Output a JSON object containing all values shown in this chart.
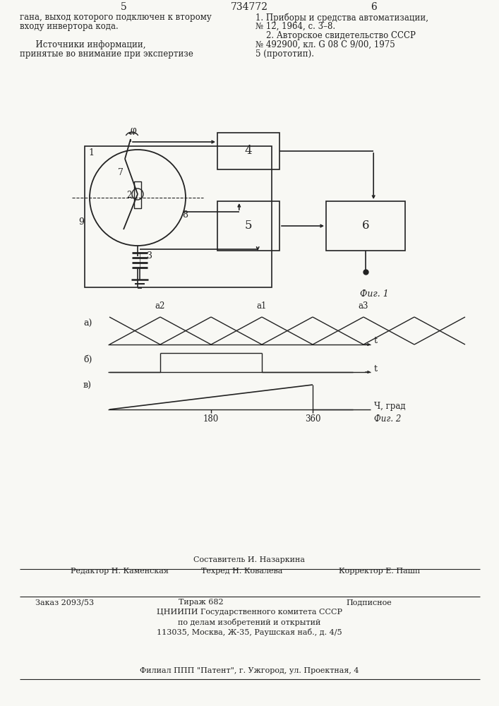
{
  "page_title": "734772",
  "page_left": "5",
  "page_right": "6",
  "text_left_col": [
    "гана, выход которого подключен к второму",
    "входу инвертора кода.",
    "",
    "      Источники информации,",
    "принятые во внимание при экспертизе"
  ],
  "text_right_col": [
    "1. Приборы и средства автоматизации,",
    "№ 12, 1964, с. 3–8.",
    "    2. Авторское свидетельство СССР",
    "№ 492900, кл. G 08 С 9/00, 1975",
    "5 (прототип)."
  ],
  "fig1_label": "Фиг. 1",
  "fig2_label": "Фиг. 2",
  "diagram_a_label": "а)",
  "diagram_b_label": "б)",
  "diagram_v_label": "в)",
  "axis_t_label": "t",
  "axis_x_label": "Ч, град",
  "tick_180": "180",
  "tick_360": "360",
  "a2_label": "a2",
  "a1_label": "a1",
  "a3_label": "a3",
  "footer_composer": "Составитель И. Назаркина",
  "footer_editor": "Редактор Н. Каменская",
  "footer_techred": "Техред Н. Ковалева",
  "footer_corrector": "Корректор Е. Пашп",
  "footer_order": "Заказ 2093/53",
  "footer_print": "Тираж 682",
  "footer_type": "Подписное",
  "footer_org": "ЦНИИПИ Государственного комитета СССР",
  "footer_dept": "по делам изобретений и открытий",
  "footer_addr": "113035, Москва, Ж-35, Раушская наб., д. 4/5",
  "footer_branch": "Филиал ППП \"Патент\", г. Ужгород, ул. Проектная, 4",
  "bg_color": "#f8f8f4",
  "line_color": "#222222",
  "text_color": "#222222"
}
